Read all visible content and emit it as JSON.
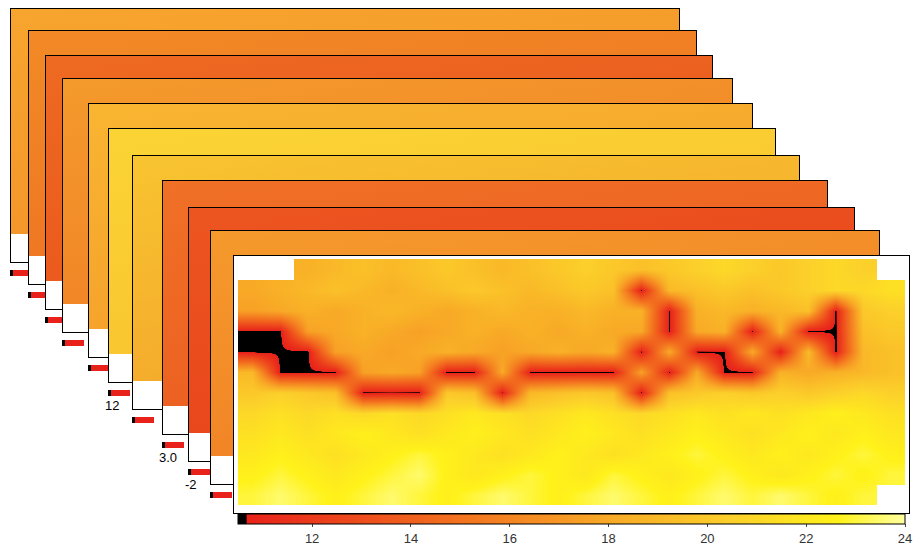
{
  "chart_data": {
    "type": "heatmap",
    "tick_labels": false,
    "annotations": [
      "12",
      "3.0",
      "-2"
    ],
    "colorbar": {
      "range": [
        10.5,
        24
      ],
      "ticks": [
        12,
        14,
        16,
        18,
        20,
        22,
        24
      ]
    },
    "cells": [
      [
        null,
        null,
        18.5,
        19,
        19.5,
        19,
        19.5,
        20,
        19.5,
        19,
        19.5,
        20,
        20.5,
        20,
        19.5,
        20,
        20.5,
        21,
        20.5,
        20,
        20.5,
        21,
        20.5,
        null
      ],
      [
        18,
        18.5,
        19,
        19.5,
        19,
        18.5,
        19,
        19.5,
        20,
        19.5,
        19,
        19.5,
        20,
        19.5,
        10.5,
        19,
        19.5,
        20,
        19.5,
        20,
        20.5,
        21,
        21,
        21.5
      ],
      [
        17.5,
        18,
        18.5,
        18,
        18.5,
        19,
        18.5,
        18,
        18.5,
        19,
        18.5,
        18.5,
        19,
        18.5,
        18.5,
        10.5,
        18.5,
        19,
        18.5,
        19,
        19.5,
        10.5,
        20,
        20.5
      ],
      [
        10.5,
        10.5,
        17.5,
        18,
        18.5,
        18,
        17.5,
        18,
        18.5,
        18,
        18.5,
        18,
        18.5,
        18,
        18,
        10.5,
        18,
        18.5,
        10.5,
        18.5,
        10.5,
        10.5,
        19.5,
        20
      ],
      [
        10.5,
        10.5,
        10.5,
        17.5,
        18,
        17.5,
        18,
        18.5,
        18,
        17.5,
        18,
        18.5,
        18,
        18.5,
        10.5,
        18,
        10.5,
        10.5,
        18,
        10.5,
        19,
        10.5,
        19,
        19.5
      ],
      [
        19,
        10.5,
        10.5,
        10.5,
        17.5,
        18,
        17.5,
        10.5,
        10.5,
        18,
        10.5,
        10.5,
        10.5,
        10.5,
        17.5,
        10.5,
        18,
        10.5,
        10.5,
        18.5,
        18,
        18.5,
        19,
        19.5
      ],
      [
        20,
        20.5,
        20,
        19.5,
        10.5,
        10.5,
        10.5,
        20,
        19.5,
        10.5,
        19,
        19.5,
        20,
        19.5,
        10.5,
        19.5,
        20,
        20.5,
        20,
        20.5,
        20,
        20.5,
        21,
        20.5
      ],
      [
        21,
        21.5,
        21,
        21.5,
        21,
        21.5,
        21,
        21.5,
        22,
        21.5,
        21,
        21.5,
        22,
        21.5,
        21,
        21.5,
        22,
        21.5,
        22,
        21.5,
        22,
        22.5,
        22,
        21.5
      ],
      [
        21.5,
        22,
        21.5,
        22,
        22.5,
        22,
        21.5,
        22,
        22.5,
        22,
        21.5,
        22,
        22.5,
        22,
        21.5,
        22,
        22.5,
        22,
        21.5,
        22,
        22.5,
        22,
        22.5,
        22
      ],
      [
        22,
        22.5,
        22,
        21.5,
        22,
        22.5,
        23,
        22.5,
        22,
        21.5,
        22,
        22.5,
        22,
        21.5,
        22,
        22.5,
        23,
        22.5,
        22,
        22.5,
        22,
        22.5,
        23,
        22.5
      ],
      [
        22.5,
        23,
        22.5,
        22,
        22.5,
        23,
        23.5,
        22.5,
        22,
        22.5,
        23,
        22.5,
        22,
        23,
        22.5,
        22,
        22.5,
        23,
        22.5,
        22,
        22.5,
        23,
        22.5,
        23
      ],
      [
        23,
        23.5,
        23,
        22.5,
        23,
        23.5,
        23,
        22.5,
        23,
        23.5,
        23,
        22.5,
        23,
        23.5,
        23,
        22.5,
        23,
        23.5,
        23,
        23.5,
        23,
        22.5,
        23,
        null
      ]
    ]
  }
}
